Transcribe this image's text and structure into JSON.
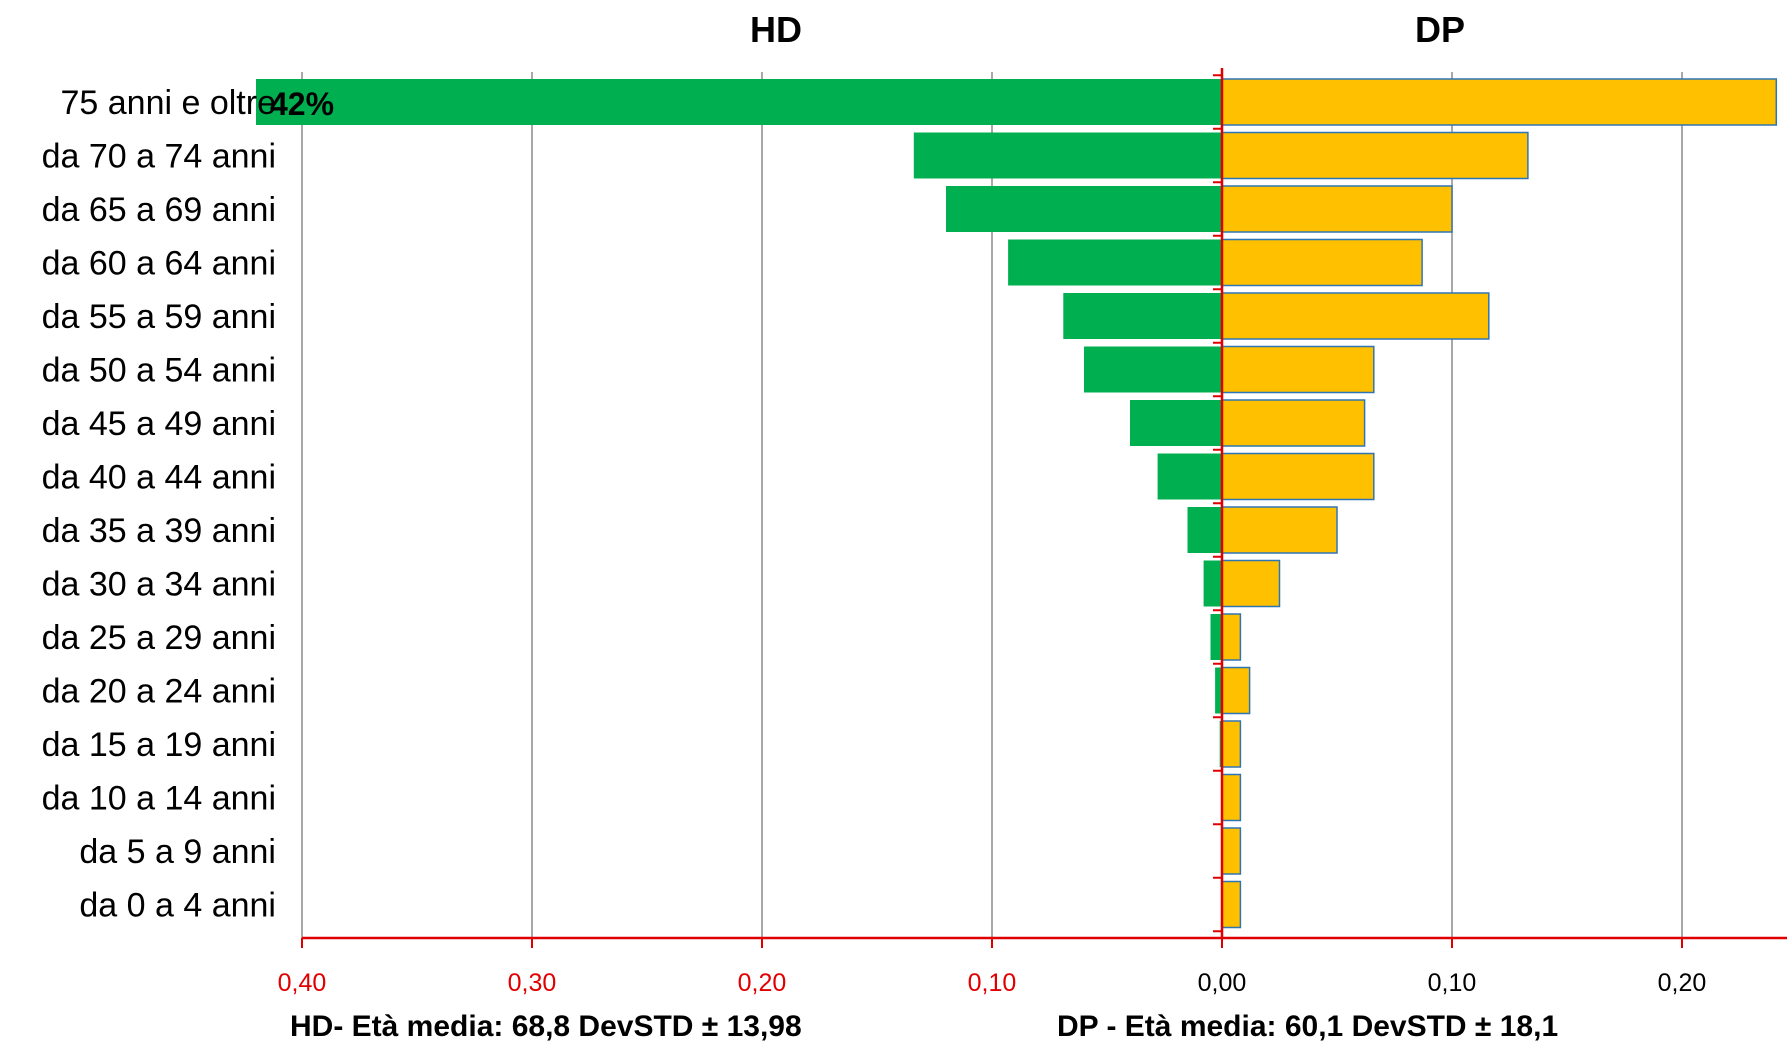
{
  "chart_data": {
    "type": "bar",
    "orientation": "horizontal",
    "layout": "population-pyramid",
    "categories": [
      "75 anni e oltre",
      "da 70 a 74 anni",
      "da 65 a 69 anni",
      "da 60 a 64 anni",
      "da 55 a 59 anni",
      "da 50 a 54 anni",
      "da 45 a 49 anni",
      "da 40 a 44 anni",
      "da 35 a 39 anni",
      "da 30 a 34 anni",
      "da 25 a 29 anni",
      "da 20 a 24 anni",
      "da 15 a 19 anni",
      "da 10 a 14 anni",
      "da 5 a 9 anni",
      "da 0 a 4 anni"
    ],
    "series": [
      {
        "name": "HD",
        "side": "left",
        "color": "#00b050",
        "values": [
          0.42,
          0.134,
          0.12,
          0.093,
          0.069,
          0.06,
          0.04,
          0.028,
          0.015,
          0.008,
          0.005,
          0.003,
          0.001,
          0.0,
          0.0,
          0.0
        ],
        "data_labels": [
          "42%",
          "",
          "",
          "",
          "",
          "",
          "",
          "",
          "",
          "",
          "",
          "",
          "",
          "",
          "",
          ""
        ]
      },
      {
        "name": "DP",
        "side": "right",
        "color": "#ffc000",
        "values": [
          0.241,
          0.133,
          0.1,
          0.087,
          0.116,
          0.066,
          0.062,
          0.066,
          0.05,
          0.025,
          0.008,
          0.012,
          0.008,
          0.008,
          0.008,
          0.008
        ]
      }
    ],
    "xlim": [
      -0.4,
      0.24
    ],
    "x_ticks_left": [
      "0,40",
      "0,30",
      "0,20",
      "0,10",
      "0,00"
    ],
    "x_ticks_right": [
      "0,10",
      "0,20"
    ],
    "grid": true,
    "footer_left": "HD- Età media: 68,8  DevSTD ±  13,98",
    "footer_right": "DP - Età media: 60,1  DevSTD ±  18,1",
    "colors": {
      "hd": "#00b050",
      "dp": "#ffc000",
      "dp_border": "#2e75b6",
      "axis": "#e00000",
      "grid": "#8c8c8c"
    }
  }
}
